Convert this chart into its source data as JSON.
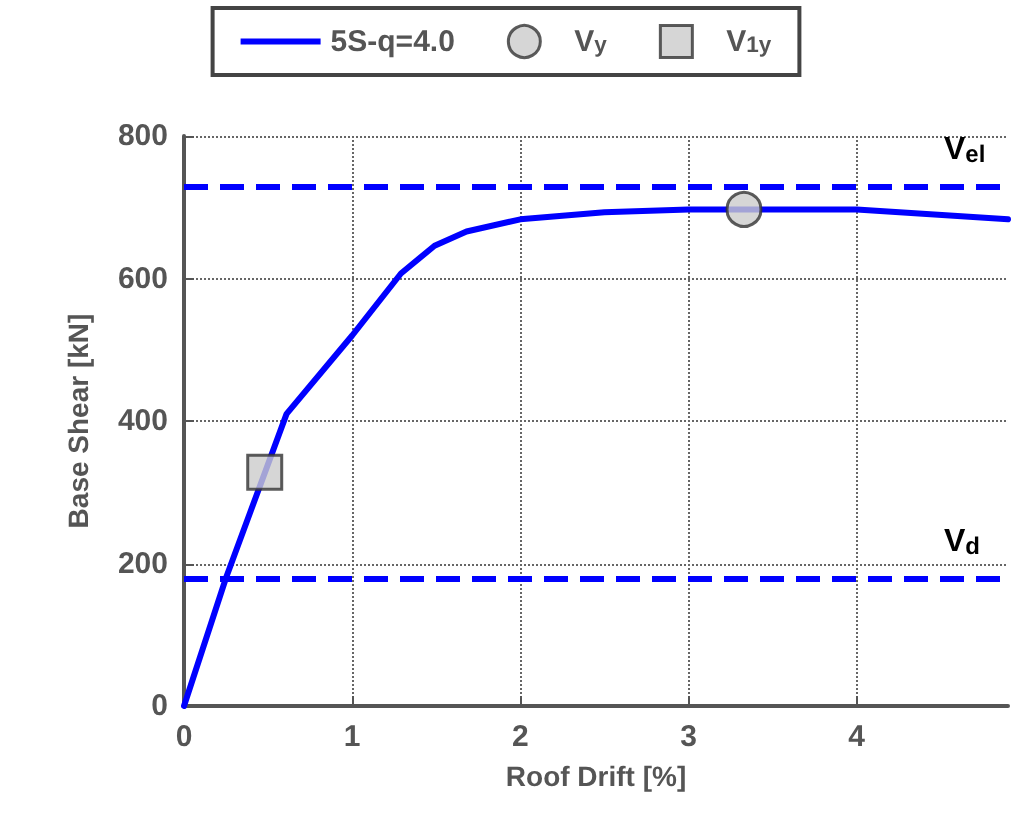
{
  "chart_data": {
    "type": "line",
    "xlabel": "Roof Drift [%]",
    "ylabel": "Base Shear [kN]",
    "xlim": [
      0,
      4.9
    ],
    "xticks": [
      0,
      1,
      2,
      3,
      4
    ],
    "ylim": [
      0,
      800
    ],
    "yticks": [
      0,
      200,
      400,
      600,
      800
    ],
    "grid": true,
    "legend": "top",
    "series": [
      {
        "name": "5S-q=4.0",
        "color": "#0000ff",
        "marker": "none",
        "line_style": "solid",
        "x": [
          0,
          0.25,
          0.61,
          1.0,
          1.29,
          1.49,
          1.68,
          2.0,
          2.5,
          3.0,
          4.0,
          4.9
        ],
        "values": [
          0,
          180,
          410,
          520,
          607,
          646,
          666,
          683,
          693,
          697,
          697,
          683
        ]
      },
      {
        "name": "V$_{y}$",
        "color": "#cccccc",
        "type": "scatter",
        "marker": "circle",
        "x": [
          3.33
        ],
        "values": [
          697
        ]
      },
      {
        "name": "V$_{1y}$",
        "color": "#cccccc",
        "type": "scatter",
        "marker": "square",
        "x": [
          0.48
        ],
        "values": [
          328
        ]
      }
    ],
    "ref_lines": [
      {
        "axis": "y",
        "value": 730,
        "label": "V$_{el}$",
        "color": "#0000ff",
        "line_style": "dashed"
      },
      {
        "axis": "y",
        "value": 180,
        "label": "V$_{d}$",
        "color": "#0000ff",
        "line_style": "dashed"
      }
    ]
  }
}
